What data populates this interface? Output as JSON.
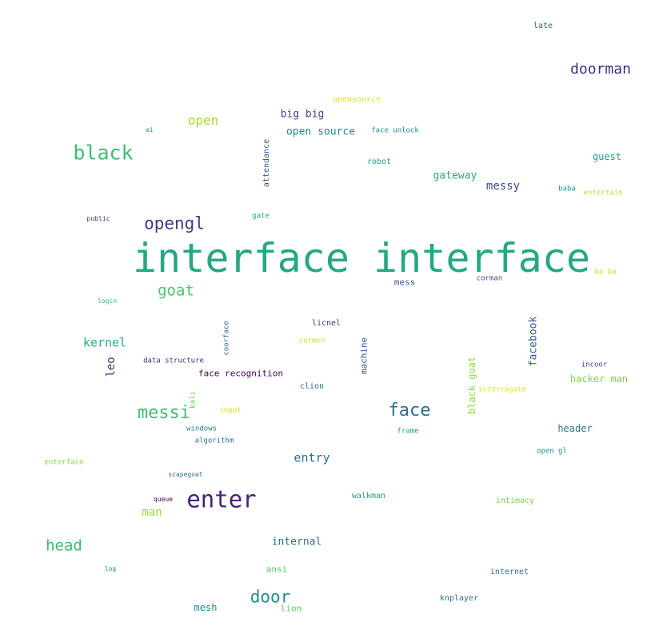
{
  "words": [
    {
      "text": "interface interface",
      "color": "#26a784"
    },
    {
      "text": "enter",
      "color": "#482173"
    },
    {
      "text": "black",
      "color": "#3fbc73"
    },
    {
      "text": "messi",
      "color": "#42be71"
    },
    {
      "text": "face",
      "color": "#2d6f8e"
    },
    {
      "text": "opengl",
      "color": "#453882"
    },
    {
      "text": "door",
      "color": "#21908d"
    },
    {
      "text": "head",
      "color": "#3bbb75"
    },
    {
      "text": "goat",
      "color": "#52c569"
    },
    {
      "text": "doorman",
      "color": "#3e2f80"
    },
    {
      "text": "open",
      "color": "#a2da37"
    },
    {
      "text": "kernel",
      "color": "#27ad81"
    },
    {
      "text": "entry",
      "color": "#2e6d8e"
    },
    {
      "text": "man",
      "color": "#a0da39"
    },
    {
      "text": "internal",
      "color": "#2c738e"
    },
    {
      "text": "messy",
      "color": "#3e4a89"
    },
    {
      "text": "gateway",
      "color": "#25ac82"
    },
    {
      "text": "facebook",
      "color": "#355f8d"
    },
    {
      "text": "open source",
      "color": "#24878e"
    },
    {
      "text": "big big",
      "color": "#3e4989"
    },
    {
      "text": "leo",
      "color": "#472a7a"
    },
    {
      "text": "guest",
      "color": "#1fa088"
    },
    {
      "text": "hacker man",
      "color": "#84d44b"
    },
    {
      "text": "header",
      "color": "#2a788e"
    },
    {
      "text": "black goat",
      "color": "#95d840"
    },
    {
      "text": "face recognition",
      "color": "#440154"
    },
    {
      "text": "machine",
      "color": "#3a538b"
    },
    {
      "text": "mess",
      "color": "#38588c"
    },
    {
      "text": "attendance",
      "color": "#39568c"
    },
    {
      "text": "mesh",
      "color": "#228c8d"
    },
    {
      "text": "lion",
      "color": "#5ec962"
    },
    {
      "text": "ansi",
      "color": "#56c667"
    },
    {
      "text": "walkman",
      "color": "#1f9a8a"
    },
    {
      "text": "intimacy",
      "color": "#7ad151"
    },
    {
      "text": "clion",
      "color": "#2e6e8e"
    },
    {
      "text": "internet",
      "color": "#2c718e"
    },
    {
      "text": "knplayer",
      "color": "#2d708e"
    },
    {
      "text": "licnel",
      "color": "#443983"
    },
    {
      "text": "robot",
      "color": "#1f9e89"
    },
    {
      "text": "opensource",
      "color": "#dde318"
    },
    {
      "text": "face unlock",
      "color": "#23898e"
    },
    {
      "text": "late",
      "color": "#33638d"
    },
    {
      "text": "baba",
      "color": "#1f9f88"
    },
    {
      "text": "entertain",
      "color": "#b5de2b"
    },
    {
      "text": "gate",
      "color": "#1fa187"
    },
    {
      "text": "corman",
      "color": "#3b528b"
    },
    {
      "text": "ba ba",
      "color": "#c8e020"
    },
    {
      "text": "coorface",
      "color": "#2c718e"
    },
    {
      "text": "cormen",
      "color": "#d2e21b"
    },
    {
      "text": "data structure",
      "color": "#472d7b"
    },
    {
      "text": "incoor",
      "color": "#3b528b"
    },
    {
      "text": "interrogate",
      "color": "#e2e418"
    },
    {
      "text": "kali",
      "color": "#6ccd5a"
    },
    {
      "text": "input",
      "color": "#d8e219"
    },
    {
      "text": "windows",
      "color": "#2a778e"
    },
    {
      "text": "algorithm",
      "color": "#2b748e"
    },
    {
      "text": "frame",
      "color": "#1e9c89"
    },
    {
      "text": "open gl",
      "color": "#228b8d"
    },
    {
      "text": "enterface",
      "color": "#86d549"
    },
    {
      "text": "scapegoat",
      "color": "#2c728e"
    },
    {
      "text": "queue",
      "color": "#440154"
    },
    {
      "text": "log",
      "color": "#25858e"
    },
    {
      "text": "login",
      "color": "#35b779"
    },
    {
      "text": "public",
      "color": "#472c7a"
    },
    {
      "text": "ai",
      "color": "#1f998a"
    }
  ]
}
